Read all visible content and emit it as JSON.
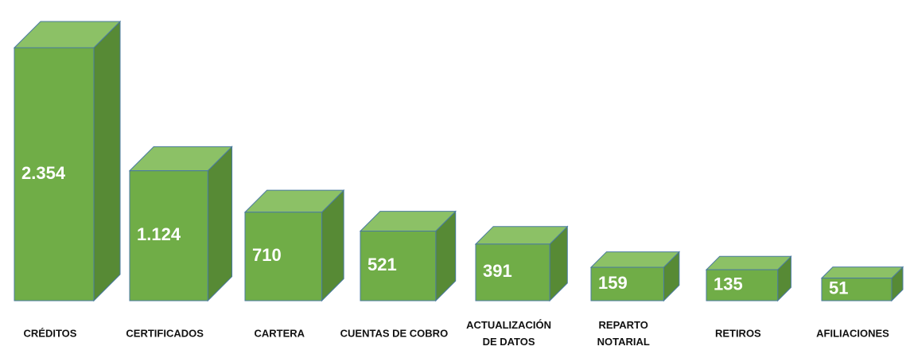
{
  "chart_data": {
    "type": "bar3d",
    "categories": [
      "CRÉDITOS",
      "CERTIFICADOS",
      "CARTERA",
      "CUENTAS DE COBRO",
      "ACTUALIZACIÓN\nDE DATOS",
      "REPARTO\nNOTARIAL",
      "RETIROS",
      "AFILIACIONES"
    ],
    "values": [
      2354,
      1124,
      710,
      521,
      391,
      159,
      135,
      51
    ],
    "value_labels": [
      "2.354",
      "1.124",
      "710",
      "521",
      "391",
      "159",
      "135",
      "51"
    ],
    "color": "#70ad47"
  }
}
